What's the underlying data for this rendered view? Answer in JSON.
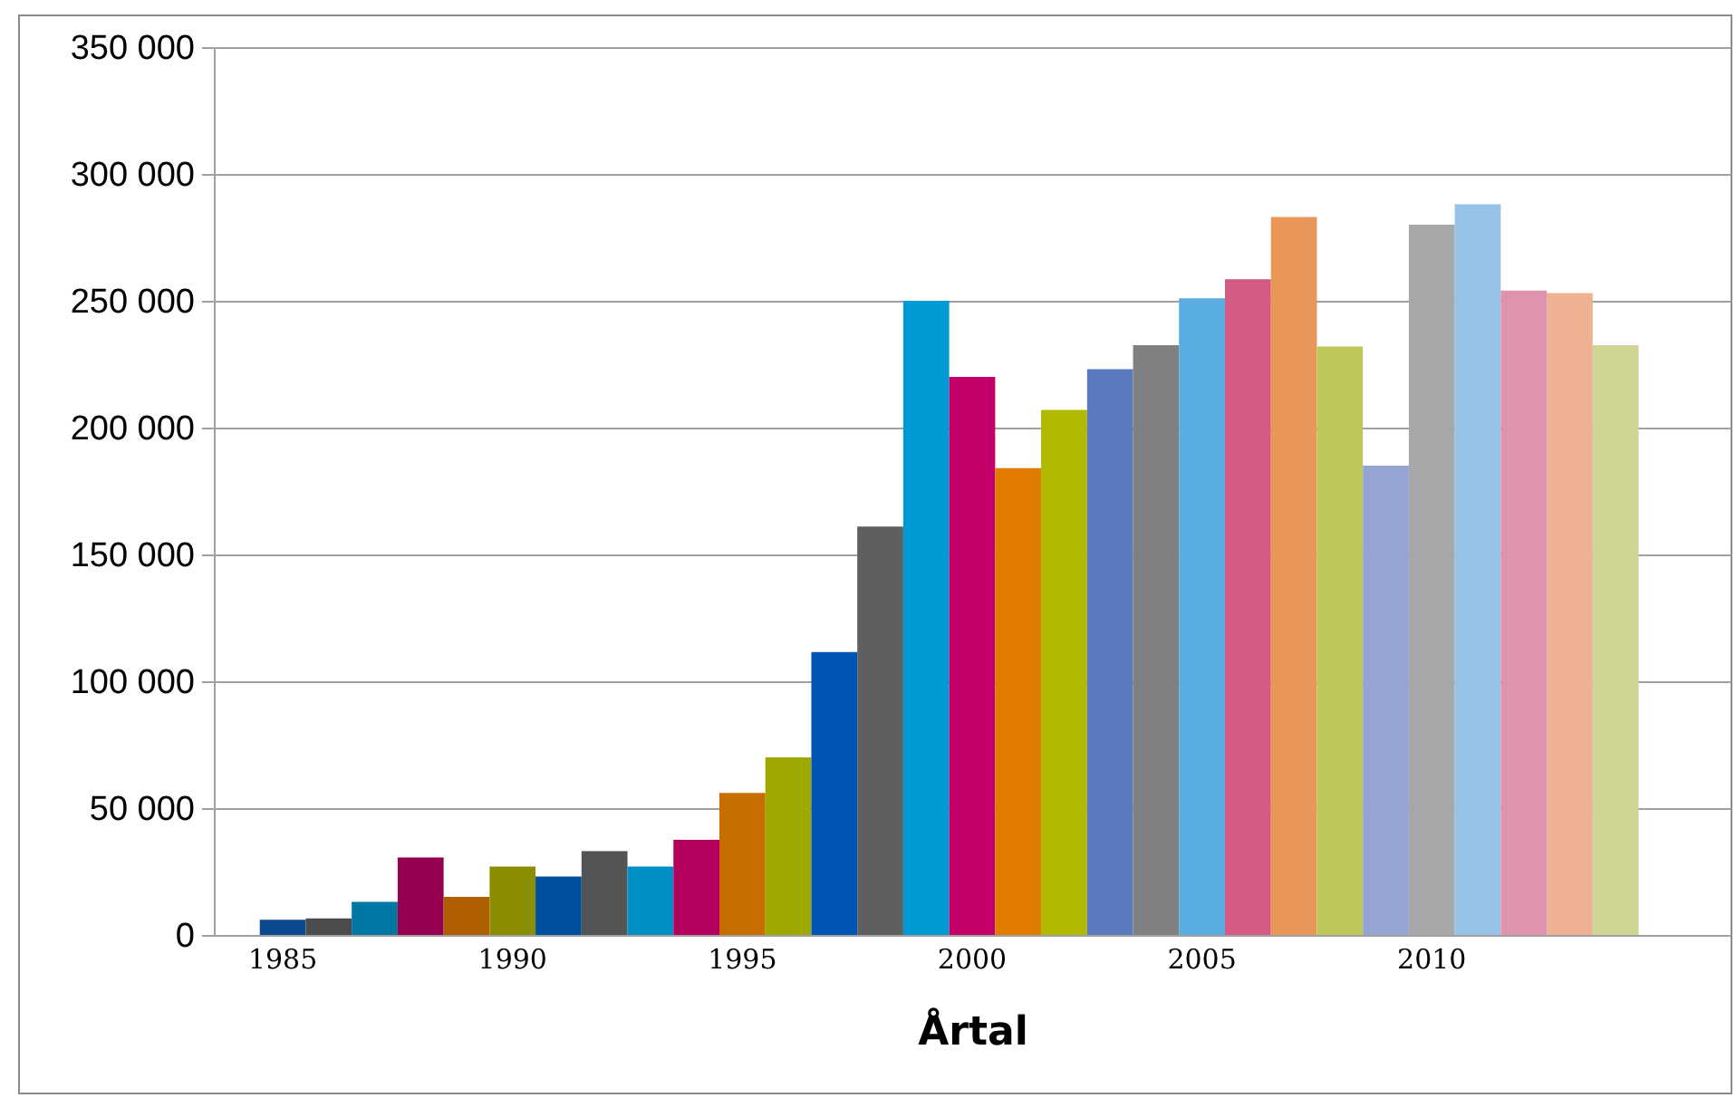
{
  "chart_data": {
    "type": "bar",
    "xlabel": "Årtal",
    "categories": [
      null,
      "1985",
      null,
      null,
      null,
      null,
      "1990",
      null,
      null,
      null,
      null,
      "1995",
      null,
      null,
      null,
      null,
      "2000",
      null,
      null,
      null,
      null,
      "2005",
      null,
      null,
      null,
      null,
      "2010",
      null,
      null,
      null,
      null,
      null,
      null
    ],
    "values": [
      null,
      6000,
      6500,
      13000,
      30500,
      15000,
      27000,
      23000,
      33000,
      27000,
      37500,
      56000,
      70000,
      111500,
      161000,
      250000,
      220000,
      184000,
      207000,
      223000,
      232500,
      251000,
      258500,
      283000,
      232000,
      185000,
      280000,
      288000,
      254000,
      253000,
      232500,
      null,
      null
    ],
    "colors": [
      null,
      "#0b4a8f",
      "#4a4c4e",
      "#0077a3",
      "#960050",
      "#b05f00",
      "#8a8e00",
      "#004f9e",
      "#525456",
      "#0090c5",
      "#b3005f",
      "#c86e00",
      "#9ea800",
      "#0055b2",
      "#5e5f61",
      "#009bd5",
      "#c5006b",
      "#e07b00",
      "#b0b800",
      "#5b79c0",
      "#7f8082",
      "#5aade2",
      "#d45a86",
      "#e8965a",
      "#bfc65a",
      "#95a4d3",
      "#a6a7a9",
      "#96c3e7",
      "#df93ae",
      "#eeb293",
      "#d0d596",
      null,
      null
    ],
    "ylim": [
      0,
      350000
    ],
    "yticks": [
      0,
      {
        "value": 50000,
        "label": "50 000"
      },
      {
        "value": 100000,
        "label": "100 000"
      },
      {
        "value": 150000,
        "label": "150 000"
      },
      {
        "value": 200000,
        "label": "200 000"
      },
      {
        "value": 250000,
        "label": "250 000"
      },
      {
        "value": 300000,
        "label": "300 000"
      },
      {
        "value": 350000,
        "label": "350 000"
      }
    ],
    "grid": "y"
  }
}
